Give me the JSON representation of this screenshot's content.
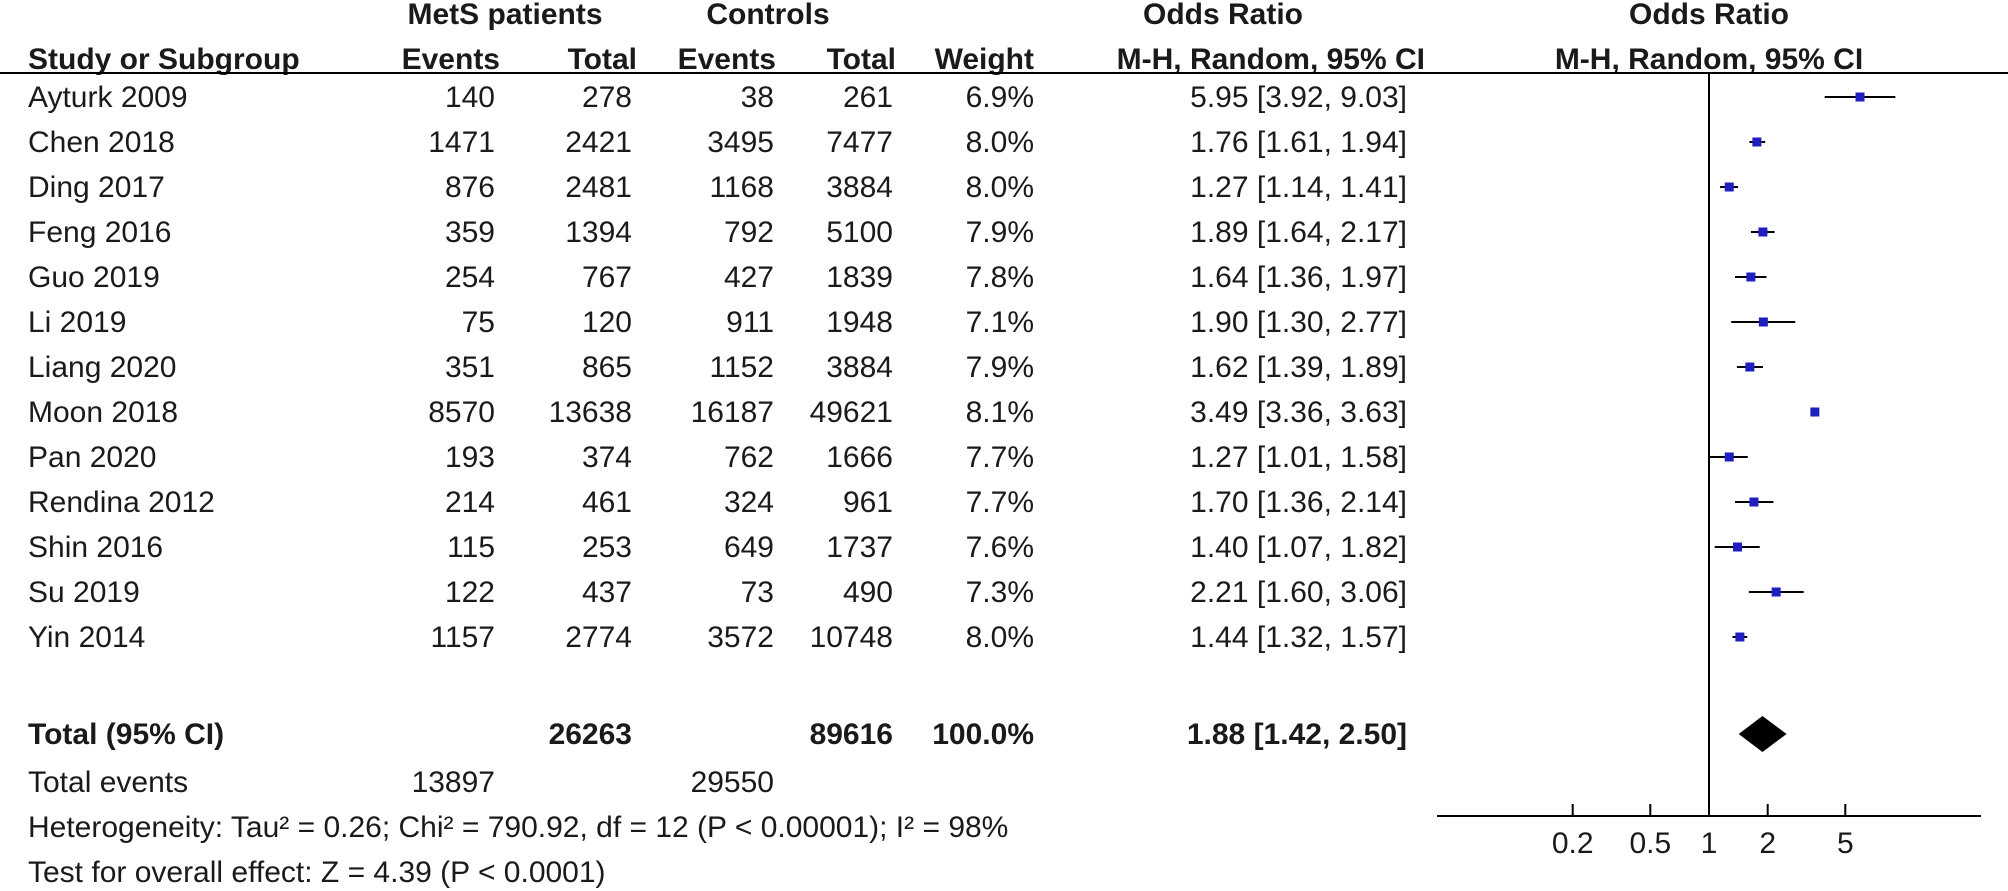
{
  "headers": {
    "group_mets": "MetS patients",
    "group_controls": "Controls",
    "odds_ratio_text": "Odds Ratio",
    "odds_ratio_plot": "Odds Ratio",
    "study": "Study or Subgroup",
    "events1": "Events",
    "total1": "Total",
    "events2": "Events",
    "total2": "Total",
    "weight": "Weight",
    "method_text": "M-H, Random, 95% CI",
    "method_plot": "M-H, Random, 95% CI"
  },
  "summary": {
    "label": "Total (95% CI)",
    "total1": "26263",
    "total2": "89616",
    "weight": "100.0%",
    "ci_text": "1.88 [1.42, 2.50]"
  },
  "total_events": {
    "label": "Total events",
    "mets": "13897",
    "controls": "29550"
  },
  "footer": {
    "heterogeneity": "Heterogeneity: Tau² = 0.26; Chi² = 790.92, df = 12 (P < 0.00001); I² = 98%",
    "overall": "Test for overall effect: Z = 4.39 (P < 0.0001)"
  },
  "colors": {
    "square": "#1f1fbf",
    "diamond": "#000000",
    "line": "#000000"
  },
  "chart_data": {
    "type": "forest",
    "scale": "log",
    "xlim": [
      0.1,
      10
    ],
    "axis_ticks": [
      {
        "value": 0.2,
        "label": "0.2"
      },
      {
        "value": 0.5,
        "label": "0.5"
      },
      {
        "value": 1,
        "label": "1"
      },
      {
        "value": 2,
        "label": "2"
      },
      {
        "value": 5,
        "label": "5"
      }
    ],
    "null_value": 1,
    "studies": [
      {
        "name": "Ayturk 2009",
        "events1": "140",
        "total1": "278",
        "events2": "38",
        "total2": "261",
        "weight": "6.9%",
        "ci_text": "5.95 [3.92, 9.03]",
        "or": 5.95,
        "lo": 3.92,
        "hi": 9.03
      },
      {
        "name": "Chen 2018",
        "events1": "1471",
        "total1": "2421",
        "events2": "3495",
        "total2": "7477",
        "weight": "8.0%",
        "ci_text": "1.76 [1.61, 1.94]",
        "or": 1.76,
        "lo": 1.61,
        "hi": 1.94
      },
      {
        "name": "Ding 2017",
        "events1": "876",
        "total1": "2481",
        "events2": "1168",
        "total2": "3884",
        "weight": "8.0%",
        "ci_text": "1.27 [1.14, 1.41]",
        "or": 1.27,
        "lo": 1.14,
        "hi": 1.41
      },
      {
        "name": "Feng 2016",
        "events1": "359",
        "total1": "1394",
        "events2": "792",
        "total2": "5100",
        "weight": "7.9%",
        "ci_text": "1.89 [1.64, 2.17]",
        "or": 1.89,
        "lo": 1.64,
        "hi": 2.17
      },
      {
        "name": "Guo 2019",
        "events1": "254",
        "total1": "767",
        "events2": "427",
        "total2": "1839",
        "weight": "7.8%",
        "ci_text": "1.64 [1.36, 1.97]",
        "or": 1.64,
        "lo": 1.36,
        "hi": 1.97
      },
      {
        "name": "Li 2019",
        "events1": "75",
        "total1": "120",
        "events2": "911",
        "total2": "1948",
        "weight": "7.1%",
        "ci_text": "1.90 [1.30, 2.77]",
        "or": 1.9,
        "lo": 1.3,
        "hi": 2.77
      },
      {
        "name": "Liang 2020",
        "events1": "351",
        "total1": "865",
        "events2": "1152",
        "total2": "3884",
        "weight": "7.9%",
        "ci_text": "1.62 [1.39, 1.89]",
        "or": 1.62,
        "lo": 1.39,
        "hi": 1.89
      },
      {
        "name": "Moon 2018",
        "events1": "8570",
        "total1": "13638",
        "events2": "16187",
        "total2": "49621",
        "weight": "8.1%",
        "ci_text": "3.49 [3.36, 3.63]",
        "or": 3.49,
        "lo": 3.36,
        "hi": 3.63
      },
      {
        "name": "Pan 2020",
        "events1": "193",
        "total1": "374",
        "events2": "762",
        "total2": "1666",
        "weight": "7.7%",
        "ci_text": "1.27 [1.01, 1.58]",
        "or": 1.27,
        "lo": 1.01,
        "hi": 1.58
      },
      {
        "name": "Rendina 2012",
        "events1": "214",
        "total1": "461",
        "events2": "324",
        "total2": "961",
        "weight": "7.7%",
        "ci_text": "1.70 [1.36, 2.14]",
        "or": 1.7,
        "lo": 1.36,
        "hi": 2.14
      },
      {
        "name": "Shin 2016",
        "events1": "115",
        "total1": "253",
        "events2": "649",
        "total2": "1737",
        "weight": "7.6%",
        "ci_text": "1.40 [1.07, 1.82]",
        "or": 1.4,
        "lo": 1.07,
        "hi": 1.82
      },
      {
        "name": "Su 2019",
        "events1": "122",
        "total1": "437",
        "events2": "73",
        "total2": "490",
        "weight": "7.3%",
        "ci_text": "2.21 [1.60, 3.06]",
        "or": 2.21,
        "lo": 1.6,
        "hi": 3.06
      },
      {
        "name": "Yin 2014",
        "events1": "1157",
        "total1": "2774",
        "events2": "3572",
        "total2": "10748",
        "weight": "8.0%",
        "ci_text": "1.44 [1.32, 1.57]",
        "or": 1.44,
        "lo": 1.32,
        "hi": 1.57
      }
    ],
    "pooled": {
      "or": 1.88,
      "lo": 1.42,
      "hi": 2.5
    }
  }
}
